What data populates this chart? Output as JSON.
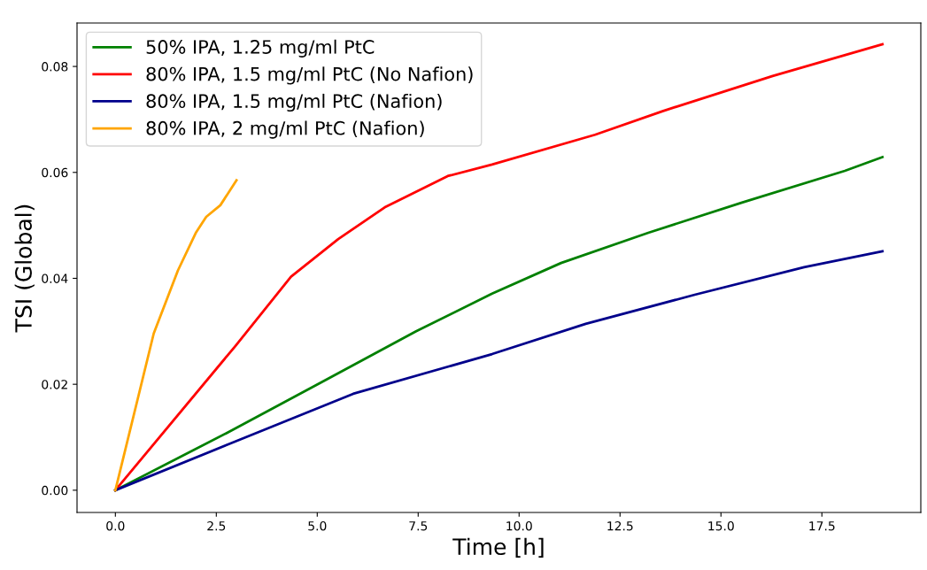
{
  "chart_data": {
    "type": "line",
    "xlabel": "Time [h]",
    "ylabel": "TSI (Global)",
    "xlim": [
      -0.95,
      19.95
    ],
    "xticks": [
      {
        "value": 0,
        "label": "0.0"
      },
      {
        "value": 2.5,
        "label": "2.5"
      },
      {
        "value": 5,
        "label": "5.0"
      },
      {
        "value": 7.5,
        "label": "7.5"
      },
      {
        "value": 10,
        "label": "10.0"
      },
      {
        "value": 12.5,
        "label": "12.5"
      },
      {
        "value": 15,
        "label": "15.0"
      },
      {
        "value": 17.5,
        "label": "17.5"
      }
    ],
    "ylim": [
      -0.0042,
      0.0882
    ],
    "yticks": [
      {
        "value": 0,
        "label": "0.00"
      },
      {
        "value": 0.02,
        "label": "0.02"
      },
      {
        "value": 0.04,
        "label": "0.04"
      },
      {
        "value": 0.06,
        "label": "0.06"
      },
      {
        "value": 0.08,
        "label": "0.08"
      }
    ],
    "grid": false,
    "legend": "top left",
    "marker": "none",
    "line_style": "solid",
    "series": [
      {
        "name": "50% IPA, 1.25 mg/ml PtC",
        "color": "#008000",
        "x": [
          0,
          2.81,
          5.13,
          7.45,
          9.33,
          11.04,
          13.2,
          15.52,
          18.07,
          19
        ],
        "values": [
          0,
          0.011,
          0.0205,
          0.03,
          0.0371,
          0.0429,
          0.0486,
          0.0543,
          0.0603,
          0.0629
        ]
      },
      {
        "name": "80% IPA, 1.5 mg/ml PtC (No Nafion)",
        "color": "#ff0000",
        "x": [
          0,
          2.97,
          4.35,
          5.52,
          6.67,
          8.23,
          9.33,
          11.88,
          13.57,
          16.28,
          19
        ],
        "values": [
          0,
          0.0272,
          0.0403,
          0.0474,
          0.0534,
          0.0593,
          0.0615,
          0.0671,
          0.0716,
          0.0782,
          0.0842
        ]
      },
      {
        "name": "80% IPA, 1.5 mg/ml PtC (Nafion)",
        "color": "#00008b",
        "x": [
          0,
          2.81,
          5.89,
          9.33,
          11.65,
          14.35,
          17.06,
          19
        ],
        "values": [
          0,
          0.0087,
          0.0182,
          0.0257,
          0.0314,
          0.0369,
          0.0421,
          0.0451
        ]
      },
      {
        "name": "80% IPA, 2 mg/ml PtC (Nafion)",
        "color": "#ffa500",
        "x": [
          0,
          0.95,
          1.55,
          2.0,
          2.25,
          2.6,
          3.0
        ],
        "values": [
          0,
          0.0296,
          0.0415,
          0.0487,
          0.0516,
          0.0538,
          0.0585
        ]
      }
    ]
  }
}
